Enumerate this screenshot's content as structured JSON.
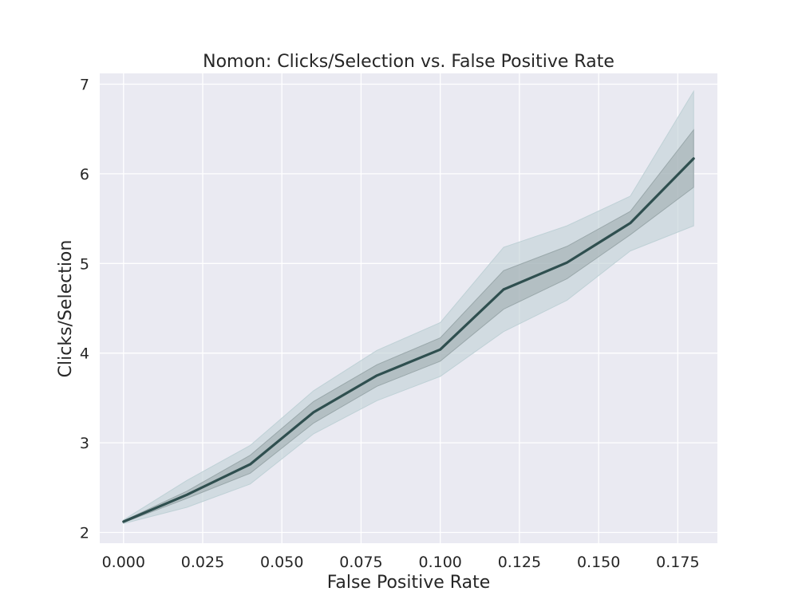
{
  "chart_data": {
    "type": "line",
    "title": "Nomon: Clicks/Selection vs. False Positive Rate",
    "xlabel": "False Positive Rate",
    "ylabel": "Clicks/Selection",
    "xlim": [
      -0.0075,
      0.1875
    ],
    "ylim": [
      1.88,
      7.12
    ],
    "grid": true,
    "x": [
      0.0,
      0.02,
      0.04,
      0.06,
      0.08,
      0.1,
      0.12,
      0.14,
      0.16,
      0.18
    ],
    "xticks": [
      0.0,
      0.025,
      0.05,
      0.075,
      0.1,
      0.125,
      0.15,
      0.175
    ],
    "xtick_labels": [
      "0.000",
      "0.025",
      "0.050",
      "0.075",
      "0.100",
      "0.125",
      "0.150",
      "0.175"
    ],
    "yticks": [
      2,
      3,
      4,
      5,
      6,
      7
    ],
    "ytick_labels": [
      "2",
      "3",
      "4",
      "5",
      "6",
      "7"
    ],
    "series": [
      {
        "values": [
          2.12,
          2.42,
          2.76,
          3.34,
          3.75,
          4.04,
          4.71,
          5.01,
          5.45,
          6.17
        ],
        "inner_band_lower": [
          2.11,
          2.38,
          2.66,
          3.22,
          3.63,
          3.91,
          4.49,
          4.83,
          5.32,
          5.85
        ],
        "inner_band_upper": [
          2.13,
          2.46,
          2.86,
          3.46,
          3.87,
          4.17,
          4.92,
          5.19,
          5.58,
          6.49
        ],
        "outer_band_lower": [
          2.1,
          2.28,
          2.54,
          3.1,
          3.47,
          3.74,
          4.24,
          4.59,
          5.14,
          5.42
        ],
        "outer_band_upper": [
          2.14,
          2.58,
          2.97,
          3.58,
          4.03,
          4.34,
          5.18,
          5.42,
          5.75,
          6.92
        ]
      }
    ],
    "colors": {
      "plot_background": "#eaeaf2",
      "grid": "#ffffff",
      "line": "#2f4f4f",
      "band_outer": "#bfd1d6",
      "band_inner": "#9aa8ab"
    }
  }
}
